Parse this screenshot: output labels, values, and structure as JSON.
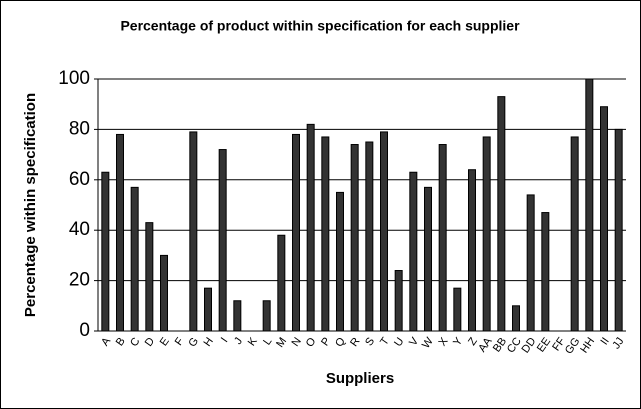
{
  "chart_data": {
    "type": "bar",
    "title": "Percentage of product within specification for each supplier",
    "x_label": "Suppliers",
    "y_label": "Percentage within specification",
    "categories": [
      "A",
      "B",
      "C",
      "D",
      "E",
      "F",
      "G",
      "H",
      "I",
      "J",
      "K",
      "L",
      "M",
      "N",
      "O",
      "P",
      "Q",
      "R",
      "S",
      "T",
      "U",
      "V",
      "W",
      "X",
      "Y",
      "Z",
      "AA",
      "BB",
      "CC",
      "DD",
      "EE",
      "FF",
      "GG",
      "HH",
      "II",
      "JJ"
    ],
    "values": [
      63,
      78,
      57,
      43,
      30,
      0,
      79,
      17,
      72,
      12,
      0,
      12,
      38,
      78,
      82,
      77,
      55,
      74,
      75,
      79,
      24,
      63,
      57,
      74,
      17,
      64,
      77,
      93,
      10,
      54,
      47,
      0,
      77,
      100,
      89,
      80
    ],
    "color": "#333333",
    "ylim": [
      0,
      100
    ],
    "yticks": [
      0,
      20,
      40,
      60,
      80,
      100
    ],
    "grid": true
  }
}
